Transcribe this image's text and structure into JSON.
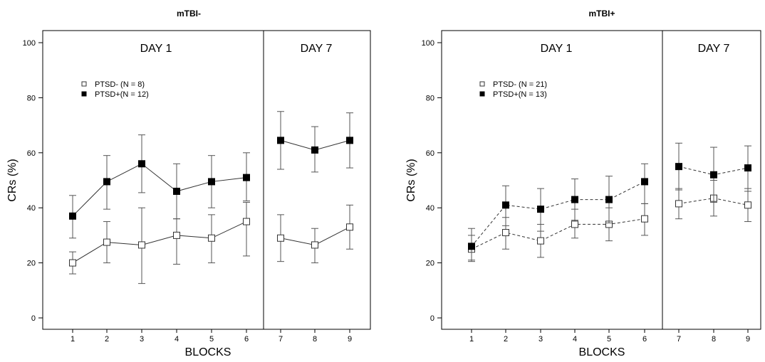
{
  "chart_data": [
    {
      "type": "line",
      "title": "mTBI-",
      "xlabel": "BLOCKS",
      "ylabel": "CRs (%)",
      "ylim": [
        0,
        100
      ],
      "yticks": [
        "0",
        "20",
        "40",
        "60",
        "80",
        "100"
      ],
      "categories": [
        "1",
        "2",
        "3",
        "4",
        "5",
        "6",
        "7",
        "8",
        "9"
      ],
      "x": [
        1,
        2,
        3,
        4,
        5,
        6,
        7,
        8,
        9
      ],
      "sections": [
        {
          "label": "DAY 1",
          "from": 1,
          "to": 6
        },
        {
          "label": "DAY 7",
          "from": 7,
          "to": 9
        }
      ],
      "line_style": "solid",
      "legend_position": "top-left",
      "series": [
        {
          "name": "PTSD- (N = 8)",
          "marker": "open-square",
          "values": [
            20,
            27.5,
            26.5,
            30,
            29,
            35,
            29,
            26.5,
            33
          ],
          "err_low": [
            16,
            20,
            12.5,
            19.5,
            20,
            22.5,
            20.5,
            20,
            25
          ],
          "err_high": [
            24,
            35,
            40,
            36,
            37.5,
            42,
            37.5,
            32.5,
            41
          ]
        },
        {
          "name": "PTSD+(N = 12)",
          "marker": "filled-square",
          "values": [
            37,
            49.5,
            56,
            46,
            49.5,
            51,
            64.5,
            61,
            64.5
          ],
          "err_low": [
            29,
            39.5,
            45.5,
            36,
            40,
            42.5,
            54,
            53,
            54.5
          ],
          "err_high": [
            44.5,
            59,
            66.5,
            56,
            59,
            60,
            75,
            69.5,
            74.5
          ]
        }
      ]
    },
    {
      "type": "line",
      "title": "mTBI+",
      "xlabel": "BLOCKS",
      "ylabel": "CRs (%)",
      "ylim": [
        0,
        100
      ],
      "yticks": [
        "0",
        "20",
        "40",
        "60",
        "80",
        "100"
      ],
      "categories": [
        "1",
        "2",
        "3",
        "4",
        "5",
        "6",
        "7",
        "8",
        "9"
      ],
      "x": [
        1,
        2,
        3,
        4,
        5,
        6,
        7,
        8,
        9
      ],
      "sections": [
        {
          "label": "DAY 1",
          "from": 1,
          "to": 6
        },
        {
          "label": "DAY 7",
          "from": 7,
          "to": 9
        }
      ],
      "line_style": "dashed",
      "legend_position": "top-left",
      "series": [
        {
          "name": "PTSD- (N = 21)",
          "marker": "open-square",
          "values": [
            25,
            31,
            28,
            34,
            34,
            36,
            41.5,
            43.5,
            41
          ],
          "err_low": [
            20.5,
            25,
            22,
            29,
            28,
            30,
            36,
            37,
            35
          ],
          "err_high": [
            30,
            36.5,
            34,
            39.5,
            40,
            41.5,
            47,
            50,
            47
          ]
        },
        {
          "name": "PTSD+(N = 13)",
          "marker": "filled-square",
          "values": [
            26,
            41,
            39.5,
            43,
            43,
            49.5,
            55,
            52,
            54.5
          ],
          "err_low": [
            21,
            33.5,
            31.5,
            35.5,
            34.5,
            41.5,
            46.5,
            42,
            46
          ],
          "err_high": [
            32.5,
            48,
            47,
            50.5,
            51.5,
            56,
            63.5,
            62,
            62.5
          ]
        }
      ]
    }
  ]
}
